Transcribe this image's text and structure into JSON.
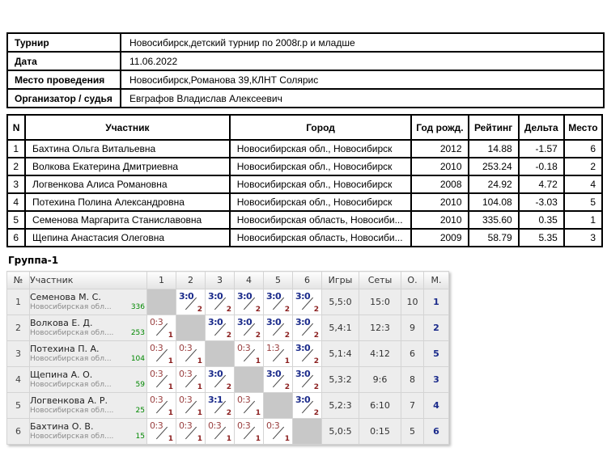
{
  "info_table": {
    "rows": [
      {
        "label": "Турнир",
        "value": "Новосибирск,детский турнир по 2008г.р и младше"
      },
      {
        "label": "Дата",
        "value": "11.06.2022"
      },
      {
        "label": "Место проведения",
        "value": "Новосибирск,Романова 39,КЛНТ Солярис"
      },
      {
        "label": "Организатор / судья",
        "value": "Евграфов Владислав Алексеевич"
      }
    ]
  },
  "participants_table": {
    "headers": [
      "N",
      "Участник",
      "Город",
      "Год рожд.",
      "Рейтинг",
      "Дельта",
      "Место"
    ],
    "rows": [
      {
        "n": "1",
        "name": "Бахтина Ольга Витальевна",
        "city": "Новосибирская обл., Новосибирск",
        "year": "2012",
        "rating": "14.88",
        "delta": "-1.57",
        "place": "6"
      },
      {
        "n": "2",
        "name": "Волкова Екатерина Дмитриевна",
        "city": "Новосибирская обл., Новосибирск",
        "year": "2010",
        "rating": "253.24",
        "delta": "-0.18",
        "place": "2"
      },
      {
        "n": "3",
        "name": "Логвенкова Алиса Романовна",
        "city": "Новосибирская обл., Новосибирск",
        "year": "2008",
        "rating": "24.92",
        "delta": "4.72",
        "place": "4"
      },
      {
        "n": "4",
        "name": "Потехина Полина Александровна",
        "city": "Новосибирская обл., Новосибирск",
        "year": "2010",
        "rating": "104.08",
        "delta": "-3.03",
        "place": "5"
      },
      {
        "n": "5",
        "name": "Семенова Маргарита Станиславовна",
        "city": "Новосибирская область, Новосиби...",
        "year": "2010",
        "rating": "335.60",
        "delta": "0.35",
        "place": "1"
      },
      {
        "n": "6",
        "name": "Щепина Анастасия Олеговна",
        "city": "Новосибирская область, Новосиби...",
        "year": "2009",
        "rating": "58.79",
        "delta": "5.35",
        "place": "3"
      }
    ]
  },
  "group_section": {
    "title": "Группа-1",
    "headers": [
      "№",
      "Участник",
      "1",
      "2",
      "3",
      "4",
      "5",
      "6",
      "Игры",
      "Сеты",
      "О.",
      "М."
    ],
    "rows": [
      {
        "num": "1",
        "name": "Семенова М. С.",
        "region": "Новосибирская обл...",
        "rating": "336",
        "results": [
          {
            "type": "self"
          },
          {
            "type": "win",
            "score": "3:0",
            "sub": "2"
          },
          {
            "type": "win",
            "score": "3:0",
            "sub": "2"
          },
          {
            "type": "win",
            "score": "3:0",
            "sub": "2"
          },
          {
            "type": "win",
            "score": "3:0",
            "sub": "2"
          },
          {
            "type": "win",
            "score": "3:0",
            "sub": "2"
          }
        ],
        "games": "5,5:0",
        "sets": "15:0",
        "points": "10",
        "place": "1"
      },
      {
        "num": "2",
        "name": "Волкова Е. Д.",
        "region": "Новосибирская обл....",
        "rating": "253",
        "results": [
          {
            "type": "loss",
            "score": "0:3",
            "sub": "1"
          },
          {
            "type": "self"
          },
          {
            "type": "win",
            "score": "3:0",
            "sub": "2"
          },
          {
            "type": "win",
            "score": "3:0",
            "sub": "2"
          },
          {
            "type": "win",
            "score": "3:0",
            "sub": "2"
          },
          {
            "type": "win",
            "score": "3:0",
            "sub": "2"
          }
        ],
        "games": "5,4:1",
        "sets": "12:3",
        "points": "9",
        "place": "2"
      },
      {
        "num": "3",
        "name": "Потехина П. А.",
        "region": "Новосибирская обл...",
        "rating": "104",
        "results": [
          {
            "type": "loss",
            "score": "0:3",
            "sub": "1"
          },
          {
            "type": "loss",
            "score": "0:3",
            "sub": "1"
          },
          {
            "type": "self"
          },
          {
            "type": "loss",
            "score": "0:3",
            "sub": "1"
          },
          {
            "type": "loss",
            "score": "1:3",
            "sub": "1"
          },
          {
            "type": "win",
            "score": "3:0",
            "sub": "2"
          }
        ],
        "games": "5,1:4",
        "sets": "4:12",
        "points": "6",
        "place": "5"
      },
      {
        "num": "4",
        "name": "Щепина А. О.",
        "region": "Новосибирская обл...",
        "rating": "59",
        "results": [
          {
            "type": "loss",
            "score": "0:3",
            "sub": "1"
          },
          {
            "type": "loss",
            "score": "0:3",
            "sub": "1"
          },
          {
            "type": "win",
            "score": "3:0",
            "sub": "2"
          },
          {
            "type": "self"
          },
          {
            "type": "win",
            "score": "3:0",
            "sub": "2"
          },
          {
            "type": "win",
            "score": "3:0",
            "sub": "2"
          }
        ],
        "games": "5,3:2",
        "sets": "9:6",
        "points": "8",
        "place": "3"
      },
      {
        "num": "5",
        "name": "Логвенкова А. Р.",
        "region": "Новосибирская обл....",
        "rating": "25",
        "results": [
          {
            "type": "loss",
            "score": "0:3",
            "sub": "1"
          },
          {
            "type": "loss",
            "score": "0:3",
            "sub": "1"
          },
          {
            "type": "win",
            "score": "3:1",
            "sub": "2"
          },
          {
            "type": "loss",
            "score": "0:3",
            "sub": "1"
          },
          {
            "type": "self"
          },
          {
            "type": "win",
            "score": "3:0",
            "sub": "2"
          }
        ],
        "games": "5,2:3",
        "sets": "6:10",
        "points": "7",
        "place": "4"
      },
      {
        "num": "6",
        "name": "Бахтина О. В.",
        "region": "Новосибирская обл....",
        "rating": "15",
        "results": [
          {
            "type": "loss",
            "score": "0:3",
            "sub": "1"
          },
          {
            "type": "loss",
            "score": "0:3",
            "sub": "1"
          },
          {
            "type": "loss",
            "score": "0:3",
            "sub": "1"
          },
          {
            "type": "loss",
            "score": "0:3",
            "sub": "1"
          },
          {
            "type": "loss",
            "score": "0:3",
            "sub": "1"
          },
          {
            "type": "self"
          }
        ],
        "games": "5,0:5",
        "sets": "0:15",
        "points": "5",
        "place": "6"
      }
    ]
  },
  "colors": {
    "win_score": "#1b2b8b",
    "loss_score": "#9a4040",
    "sub_number": "#8b1f1f",
    "rating_green": "#008800",
    "place_navy": "#1b2b8b",
    "self_cell_bg": "#c8c8c8",
    "row_bg": "#ededed"
  }
}
